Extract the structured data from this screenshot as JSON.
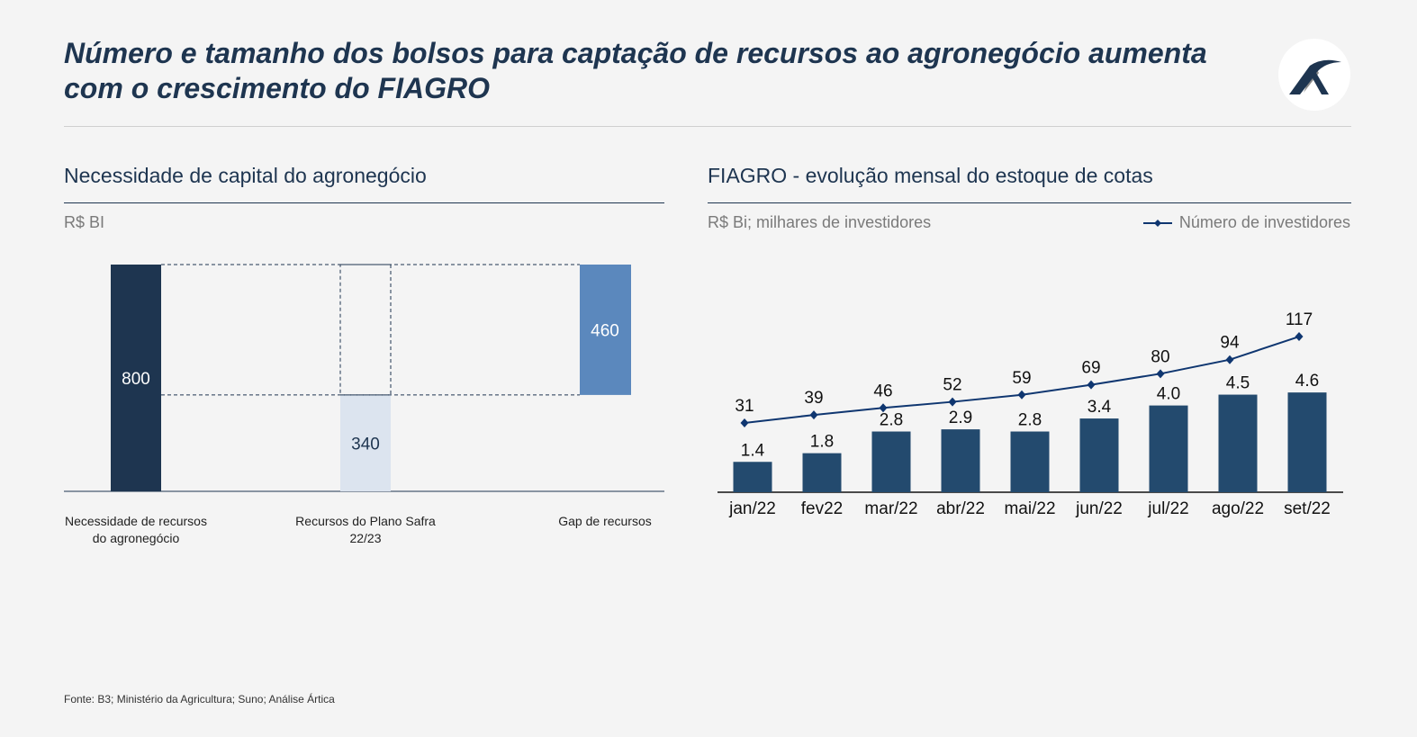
{
  "title": "Número e tamanho dos bolsos para captação de recursos ao agronegócio aumenta com o crescimento do FIAGRO",
  "source": "Fonte: B3; Ministério da Agricultura; Suno; Análise Ártica",
  "colors": {
    "dark": "#1e3550",
    "bar": "#234a6e",
    "light": "#dce4ef",
    "mid": "#5b88bd",
    "line": "#0f3670"
  },
  "chart_data": [
    {
      "type": "bar",
      "subtype": "waterfall",
      "title": "Necessidade de capital do agronegócio",
      "ylabel": "R$ BI",
      "categories": [
        "Necessidade de recursos do agronegócio",
        "Recursos do Plano Safra 22/23",
        "Gap de recursos"
      ],
      "values": [
        800,
        340,
        460
      ]
    },
    {
      "type": "bar+line",
      "title": "FIAGRO - evolução mensal do estoque de cotas",
      "ylabel": "R$ Bi; milhares de investidores",
      "categories": [
        "jan/22",
        "fev22",
        "mar/22",
        "abr/22",
        "mai/22",
        "jun/22",
        "jul/22",
        "ago/22",
        "set/22"
      ],
      "series": [
        {
          "type": "bar",
          "values": [
            1.4,
            1.8,
            2.8,
            2.9,
            2.8,
            3.4,
            4.0,
            4.5,
            4.6
          ]
        },
        {
          "type": "line",
          "name": "Número de investidores",
          "values": [
            31,
            39,
            46,
            52,
            59,
            69,
            80,
            94,
            117
          ]
        }
      ],
      "legend": "top-right"
    }
  ]
}
